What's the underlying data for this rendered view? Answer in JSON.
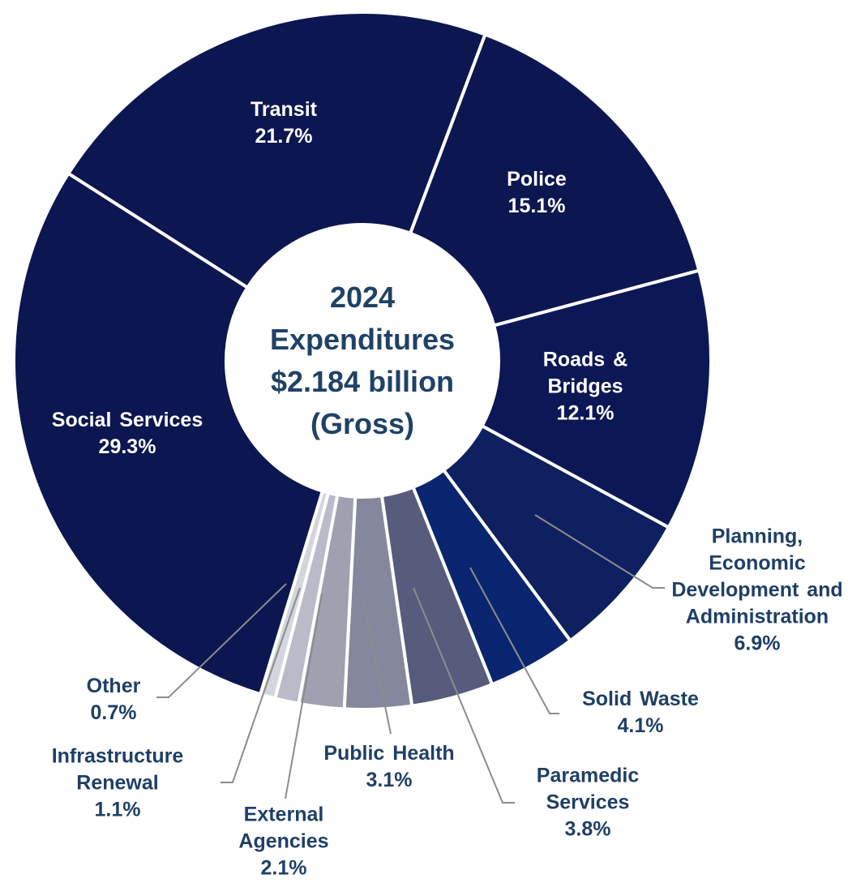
{
  "chart_data": {
    "type": "donut",
    "center_text": [
      "2024",
      "Expenditures",
      "$2.184 billion",
      "(Gross)"
    ],
    "categories": [
      "Transit",
      "Police",
      "Roads & Bridges",
      "Planning, Economic Development and Administration",
      "Solid Waste",
      "Paramedic Services",
      "Public Health",
      "External Agencies",
      "Infrastructure Renewal",
      "Other",
      "Social Services"
    ],
    "values": [
      21.7,
      15.1,
      12.1,
      6.9,
      4.1,
      3.8,
      3.1,
      2.1,
      1.1,
      0.7,
      29.3
    ],
    "value_labels": [
      "21.7%",
      "15.1%",
      "12.1%",
      "6.9%",
      "4.1%",
      "3.8%",
      "3.1%",
      "2.1%",
      "1.1%",
      "0.7%",
      "29.3%"
    ],
    "colors": [
      "#0c1650",
      "#0c1651",
      "#0c1855",
      "#0e205f",
      "#0a256f",
      "#575c7c",
      "#85879c",
      "#9fa1b1",
      "#b9bbc9",
      "#d3d5df",
      "#0c1650"
    ]
  }
}
